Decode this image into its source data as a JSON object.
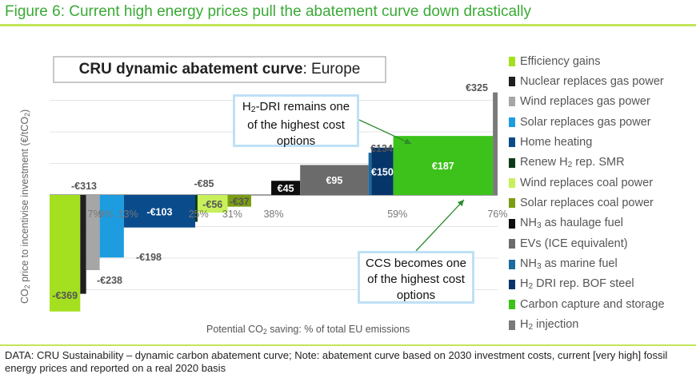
{
  "figure_title": "Figure 6: Current high energy prices pull the abatement curve down drastically",
  "footnote": "DATA: CRU Sustainability – dynamic carbon abatement curve; Note: abatement curve based on 2030 investment costs, current [very high] fossil energy prices and reported on a real 2020 basis",
  "chart_data": {
    "type": "bar",
    "title_bold": "CRU dynamic abatement curve",
    "title_rest": ": Europe",
    "ylabel_parts": [
      "CO",
      "2",
      " price to incentivise investment (€/tCO",
      "2",
      ")"
    ],
    "xlabel_parts": [
      "Potential CO",
      "2",
      " saving:  % of total EU emissions"
    ],
    "ylim": [
      -380,
      340
    ],
    "xlim": [
      0,
      76
    ],
    "grid": true,
    "legend_position": "right",
    "series": [
      {
        "name": "Efficiency gains",
        "start": 0,
        "end": 5.2,
        "value": -369,
        "label": "-€369",
        "color": "#a4e01f"
      },
      {
        "name": "Nuclear replaces gas power",
        "start": 5.2,
        "end": 6.2,
        "value": -313,
        "label": "-€313",
        "color": "#1f1f1f"
      },
      {
        "name": "Wind replaces gas power",
        "start": 6.2,
        "end": 8.5,
        "value": -238,
        "label": "-€238",
        "color": "#a6a6a6"
      },
      {
        "name": "Solar replaces gas power",
        "start": 8.5,
        "end": 12.6,
        "value": -198,
        "label": "-€198",
        "color": "#1d9ce0"
      },
      {
        "name": "Home heating",
        "start": 12.6,
        "end": 24.7,
        "value": -103,
        "label": "-€103",
        "color": "#0a4b8c"
      },
      {
        "name": "Renew H2 rep. SMR",
        "start": 24.7,
        "end": 25.1,
        "value": -85,
        "label": "-€85",
        "color": "#0c3b18"
      },
      {
        "name": "Wind replaces coal power",
        "start": 25.1,
        "end": 30.2,
        "value": -56,
        "label": "-€56",
        "color": "#c8f05a"
      },
      {
        "name": "Solar replaces coal power",
        "start": 30.2,
        "end": 34.2,
        "value": -37,
        "label": "-€37",
        "color": "#7a9e12"
      },
      {
        "name": "NH3 as haulage fuel",
        "start": 37.6,
        "end": 42.5,
        "value": 45,
        "label": "€45",
        "color": "#0d0d0d"
      },
      {
        "name": "EVs (ICE equivalent)",
        "start": 42.5,
        "end": 54.1,
        "value": 95,
        "label": "€95",
        "color": "#6b6b6b"
      },
      {
        "name": "NH3 as marine fuel",
        "start": 54.1,
        "end": 54.6,
        "value": 134,
        "label": "€134",
        "color": "#1c6a9e"
      },
      {
        "name": "H2 DRI rep. BOF steel",
        "start": 54.6,
        "end": 58.3,
        "value": 150,
        "label": "€150",
        "color": "#06356a"
      },
      {
        "name": "Carbon capture and storage",
        "start": 58.3,
        "end": 75.2,
        "value": 187,
        "label": "€187",
        "color": "#3cc21a"
      },
      {
        "name": "H2 injection",
        "start": 75.2,
        "end": 76.0,
        "value": 325,
        "label": "€325",
        "color": "#7a7a7a"
      }
    ],
    "legend_labels": [
      [
        "Efficiency gains"
      ],
      [
        "Nuclear replaces gas power"
      ],
      [
        "Wind replaces gas power"
      ],
      [
        "Solar replaces gas power"
      ],
      [
        "Home heating"
      ],
      [
        "Renew H",
        "2",
        " rep. SMR"
      ],
      [
        "Wind replaces coal power"
      ],
      [
        "Solar replaces coal power"
      ],
      [
        "NH",
        "3",
        " as haulage fuel"
      ],
      [
        "EVs (ICE equivalent)"
      ],
      [
        "NH",
        "3",
        " as marine fuel"
      ],
      [
        "H",
        "2",
        " DRI rep. BOF steel"
      ],
      [
        "Carbon capture and storage"
      ],
      [
        "H",
        "2",
        " injection"
      ]
    ],
    "x_ticks": [
      {
        "value": 7,
        "label": "7%"
      },
      {
        "value": 9,
        "label": "9%"
      },
      {
        "value": 12.5,
        "label": "13%"
      },
      {
        "value": 25,
        "label": "25%"
      },
      {
        "value": 31,
        "label": "31%"
      },
      {
        "value": 38,
        "label": "38%"
      },
      {
        "value": 59,
        "label": "59%"
      },
      {
        "value": 76,
        "label": "76%"
      }
    ],
    "annotations": [
      {
        "id": "h2dri",
        "lines": [
          [
            "H",
            "2",
            "-DRI remains one"
          ],
          [
            "of the highest cost"
          ],
          [
            "options"
          ]
        ]
      },
      {
        "id": "ccs",
        "lines": [
          [
            "CCS becomes one"
          ],
          [
            "of the highest cost"
          ],
          [
            "options"
          ]
        ]
      }
    ]
  }
}
